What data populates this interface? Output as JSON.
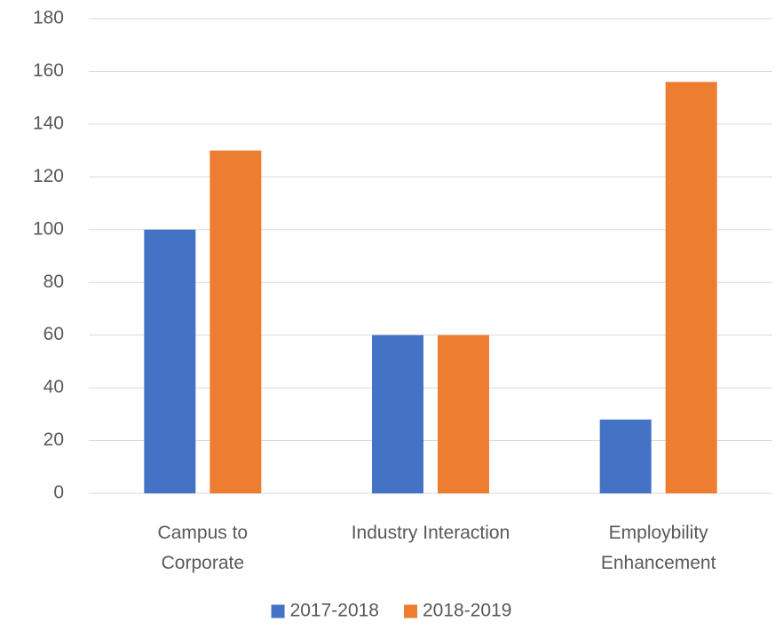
{
  "chart_data": {
    "type": "bar",
    "categories": [
      [
        "Campus to",
        "Corporate"
      ],
      [
        "Industry Interaction"
      ],
      [
        "Employbility",
        "Enhancement"
      ]
    ],
    "series": [
      {
        "name": "2017-2018",
        "color": "#4472c4",
        "values": [
          100,
          60,
          28
        ]
      },
      {
        "name": "2018-2019",
        "color": "#ed7d31",
        "values": [
          130,
          60,
          156
        ]
      }
    ],
    "ylim": [
      0,
      180
    ],
    "yticks": [
      0,
      20,
      40,
      60,
      80,
      100,
      120,
      140,
      160,
      180
    ],
    "grid": true,
    "legend": "bottom"
  }
}
